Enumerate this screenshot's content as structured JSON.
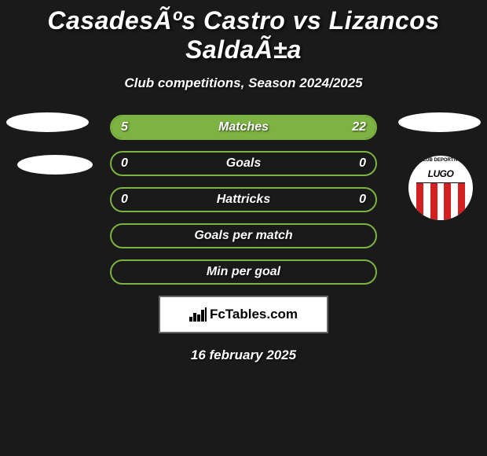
{
  "header": {
    "title": "CasadesÃºs Castro vs Lizancos SaldaÃ±a",
    "subtitle": "Club competitions, Season 2024/2025"
  },
  "colors": {
    "background": "#1a1a1a",
    "accent_green": "#7cb342",
    "text": "#ffffff",
    "box_bg": "#ffffff",
    "box_border": "#666666"
  },
  "stats": [
    {
      "label": "Matches",
      "left_value": "5",
      "right_value": "22",
      "left_fill_pct": 18.5,
      "right_fill_pct": 81.5,
      "show_left": true,
      "show_right": true
    },
    {
      "label": "Goals",
      "left_value": "0",
      "right_value": "0",
      "left_fill_pct": 0,
      "right_fill_pct": 0,
      "show_left": true,
      "show_right": true
    },
    {
      "label": "Hattricks",
      "left_value": "0",
      "right_value": "0",
      "left_fill_pct": 0,
      "right_fill_pct": 0,
      "show_left": true,
      "show_right": true
    },
    {
      "label": "Goals per match",
      "left_value": "",
      "right_value": "",
      "left_fill_pct": 0,
      "right_fill_pct": 0,
      "show_left": false,
      "show_right": false
    },
    {
      "label": "Min per goal",
      "left_value": "",
      "right_value": "",
      "left_fill_pct": 0,
      "right_fill_pct": 0,
      "show_left": false,
      "show_right": false
    }
  ],
  "badge": {
    "main_text": "LUGO",
    "arc_text": "CLUB DEPORTIVO"
  },
  "branding": {
    "text": "FcTables.com"
  },
  "footer": {
    "date": "16 february 2025"
  },
  "typography": {
    "title_fontsize": 32,
    "subtitle_fontsize": 17,
    "stat_label_fontsize": 16,
    "date_fontsize": 17,
    "font_weight_heavy": 900,
    "font_weight_bold": 700,
    "font_style": "italic"
  },
  "layout": {
    "stat_row_width": 340,
    "stat_row_height": 32,
    "stat_row_radius": 18,
    "stat_row_gap": 14,
    "container_width": 620,
    "container_height": 580
  }
}
